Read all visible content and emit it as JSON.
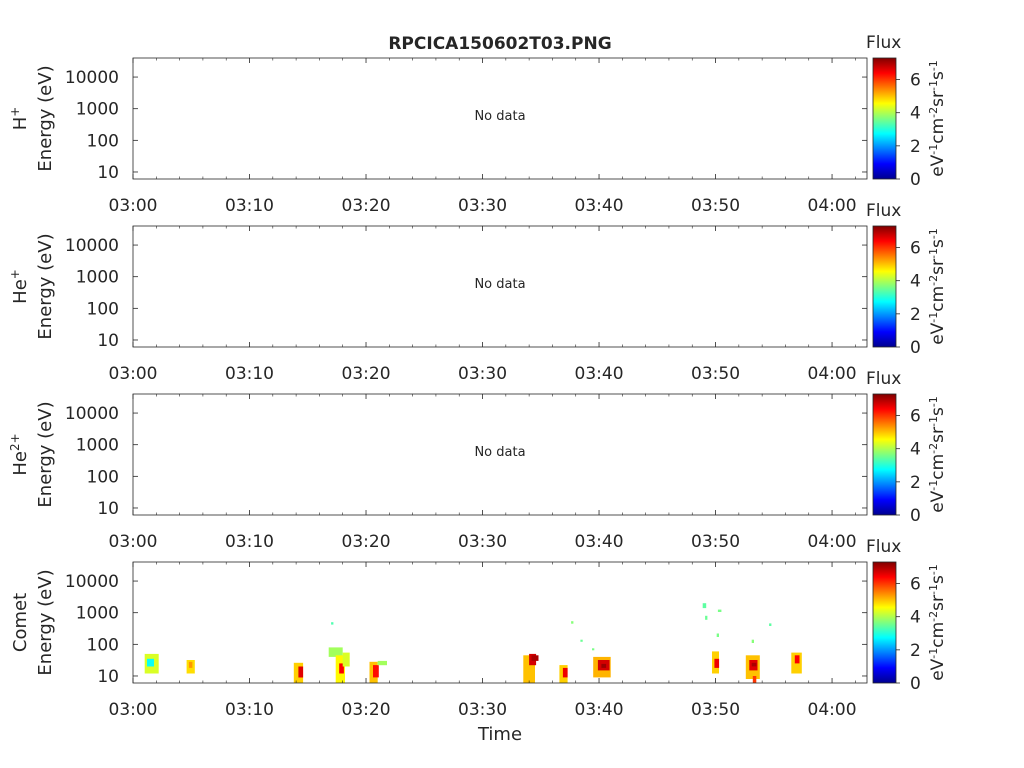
{
  "title": "RPCICA150602T03.PNG",
  "xlabel": "Time",
  "colorbar": {
    "label": "Flux",
    "units_main": "eV",
    "units_parts": [
      "-1",
      "cm",
      "-2",
      "sr",
      "-1",
      "s",
      "-1"
    ],
    "ticks": [
      "0",
      "2",
      "4",
      "6"
    ],
    "range": [
      0,
      7.3
    ],
    "colors": [
      "#00008f",
      "#0000ff",
      "#00ffff",
      "#7fff7f",
      "#ffff00",
      "#ff0000",
      "#800000"
    ]
  },
  "chart_data": [
    {
      "type": "heatmap",
      "ion_label": "H",
      "ion_charge": "+",
      "ylabel": "Energy (eV)",
      "yscale": "log",
      "ylim": [
        6,
        40000
      ],
      "yticks": [
        "10",
        "100",
        "1000",
        "10000"
      ],
      "xticks": [
        "03:00",
        "03:10",
        "03:20",
        "03:30",
        "03:40",
        "03:50",
        "04:00"
      ],
      "xlim_min": [
        0,
        63
      ],
      "message": "No data",
      "cells": []
    },
    {
      "type": "heatmap",
      "ion_label": "He",
      "ion_charge": "+",
      "ylabel": "Energy (eV)",
      "yscale": "log",
      "ylim": [
        6,
        40000
      ],
      "yticks": [
        "10",
        "100",
        "1000",
        "10000"
      ],
      "xticks": [
        "03:00",
        "03:10",
        "03:20",
        "03:30",
        "03:40",
        "03:50",
        "04:00"
      ],
      "xlim_min": [
        0,
        63
      ],
      "message": "No data",
      "cells": []
    },
    {
      "type": "heatmap",
      "ion_label": "He",
      "ion_charge": "2+",
      "ylabel": "Energy (eV)",
      "yscale": "log",
      "ylim": [
        6,
        40000
      ],
      "yticks": [
        "10",
        "100",
        "1000",
        "10000"
      ],
      "xticks": [
        "03:00",
        "03:10",
        "03:20",
        "03:30",
        "03:40",
        "03:50",
        "04:00"
      ],
      "xlim_min": [
        0,
        63
      ],
      "message": "No data",
      "cells": []
    },
    {
      "type": "heatmap",
      "ion_label": "Comet",
      "ion_charge": "",
      "ylabel": "Energy (eV)",
      "yscale": "log",
      "ylim": [
        6,
        40000
      ],
      "yticks": [
        "10",
        "100",
        "1000",
        "10000"
      ],
      "xticks": [
        "03:00",
        "03:10",
        "03:20",
        "03:30",
        "03:40",
        "03:50",
        "04:00"
      ],
      "xlim_min": [
        0,
        63
      ],
      "message": "",
      "cells": [
        {
          "t": [
            1.0,
            2.2
          ],
          "e": [
            12,
            50
          ],
          "v": 4.3
        },
        {
          "t": [
            1.2,
            1.8
          ],
          "e": [
            20,
            35
          ],
          "v": 2.8
        },
        {
          "t": [
            4.6,
            5.3
          ],
          "e": [
            12,
            32
          ],
          "v": 4.8
        },
        {
          "t": [
            4.8,
            5.1
          ],
          "e": [
            18,
            28
          ],
          "v": 5.3
        },
        {
          "t": [
            13.8,
            14.6
          ],
          "e": [
            6,
            26
          ],
          "v": 4.9
        },
        {
          "t": [
            14.2,
            14.6
          ],
          "e": [
            9,
            20
          ],
          "v": 6.6
        },
        {
          "t": [
            16.8,
            18.0
          ],
          "e": [
            40,
            80
          ],
          "v": 3.9
        },
        {
          "t": [
            17.4,
            18.2
          ],
          "e": [
            6,
            45
          ],
          "v": 4.6
        },
        {
          "t": [
            17.7,
            18.1
          ],
          "e": [
            12,
            25
          ],
          "v": 6.4
        },
        {
          "t": [
            18.0,
            18.6
          ],
          "e": [
            20,
            55
          ],
          "v": 4.3
        },
        {
          "t": [
            20.3,
            21.0
          ],
          "e": [
            6,
            28
          ],
          "v": 5.0
        },
        {
          "t": [
            20.6,
            21.1
          ],
          "e": [
            9,
            22
          ],
          "v": 6.3
        },
        {
          "t": [
            21.0,
            21.8
          ],
          "e": [
            22,
            30
          ],
          "v": 3.9
        },
        {
          "t": [
            33.5,
            34.5
          ],
          "e": [
            6,
            45
          ],
          "v": 5.0
        },
        {
          "t": [
            34.0,
            34.6
          ],
          "e": [
            22,
            50
          ],
          "v": 6.7
        },
        {
          "t": [
            36.6,
            37.3
          ],
          "e": [
            6,
            22
          ],
          "v": 4.9
        },
        {
          "t": [
            36.9,
            37.3
          ],
          "e": [
            9,
            18
          ],
          "v": 6.5
        },
        {
          "t": [
            39.5,
            41.0
          ],
          "e": [
            9,
            40
          ],
          "v": 5.1
        },
        {
          "t": [
            39.9,
            40.9
          ],
          "e": [
            15,
            32
          ],
          "v": 6.7
        },
        {
          "t": [
            49.7,
            50.3
          ],
          "e": [
            12,
            60
          ],
          "v": 4.9
        },
        {
          "t": [
            49.9,
            50.3
          ],
          "e": [
            18,
            35
          ],
          "v": 6.5
        },
        {
          "t": [
            52.6,
            53.8
          ],
          "e": [
            8,
            45
          ],
          "v": 5.0
        },
        {
          "t": [
            52.9,
            53.6
          ],
          "e": [
            15,
            32
          ],
          "v": 6.6
        },
        {
          "t": [
            53.2,
            53.5
          ],
          "e": [
            6,
            10
          ],
          "v": 6.0
        },
        {
          "t": [
            56.5,
            57.4
          ],
          "e": [
            12,
            55
          ],
          "v": 4.9
        },
        {
          "t": [
            56.8,
            57.2
          ],
          "e": [
            25,
            45
          ],
          "v": 6.4
        },
        {
          "t": [
            17.0,
            17.2
          ],
          "e": [
            420,
            500
          ],
          "v": 3.3
        },
        {
          "t": [
            37.6,
            37.8
          ],
          "e": [
            450,
            540
          ],
          "v": 3.7
        },
        {
          "t": [
            38.4,
            38.6
          ],
          "e": [
            120,
            140
          ],
          "v": 3.5
        },
        {
          "t": [
            39.4,
            39.6
          ],
          "e": [
            65,
            75
          ],
          "v": 3.6
        },
        {
          "t": [
            48.9,
            49.2
          ],
          "e": [
            1400,
            2000
          ],
          "v": 3.4
        },
        {
          "t": [
            49.1,
            49.3
          ],
          "e": [
            600,
            800
          ],
          "v": 3.5
        },
        {
          "t": [
            50.2,
            50.5
          ],
          "e": [
            1050,
            1250
          ],
          "v": 3.6
        },
        {
          "t": [
            50.1,
            50.3
          ],
          "e": [
            170,
            220
          ],
          "v": 3.6
        },
        {
          "t": [
            54.6,
            54.8
          ],
          "e": [
            380,
            460
          ],
          "v": 3.4
        },
        {
          "t": [
            53.1,
            53.3
          ],
          "e": [
            110,
            140
          ],
          "v": 3.7
        },
        {
          "t": [
            34.2,
            34.8
          ],
          "e": [
            30,
            45
          ],
          "v": 7.0
        },
        {
          "t": [
            40.2,
            40.6
          ],
          "e": [
            18,
            24
          ],
          "v": 7.1
        },
        {
          "t": [
            53.1,
            53.5
          ],
          "e": [
            20,
            26
          ],
          "v": 7.0
        }
      ]
    }
  ]
}
